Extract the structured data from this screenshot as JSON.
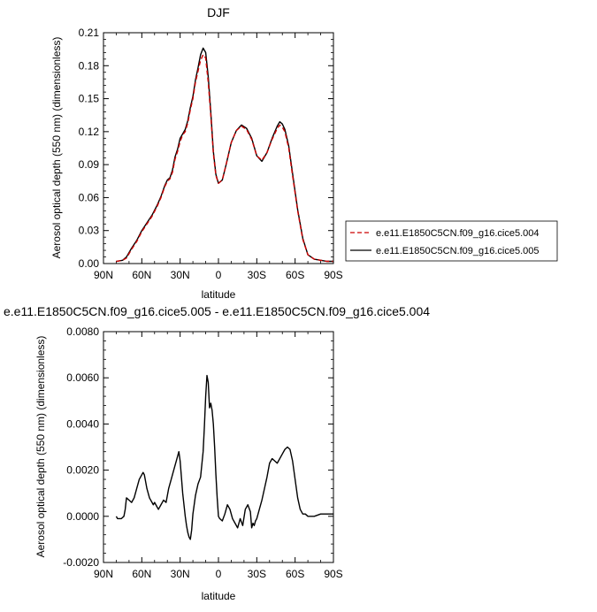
{
  "figure": {
    "top_title": "DJF",
    "bottom_title": "e.e11.E1850C5CN.f09_g16.cice5.005 - e.e11.E1850C5CN.f09_g16.cice5.004"
  },
  "chart_data": [
    {
      "type": "line",
      "title": "DJF",
      "xlabel": "latitude",
      "ylabel": "Aerosol optical depth (550 nm) (dimensionless)",
      "xlim": [
        90,
        -90
      ],
      "ylim": [
        0.0,
        0.21
      ],
      "x_ticks": [
        90,
        60,
        30,
        0,
        -30,
        -60,
        -90
      ],
      "x_tick_labels": [
        "90N",
        "60N",
        "30N",
        "0",
        "30S",
        "60S",
        "90S"
      ],
      "y_ticks": [
        0.0,
        0.03,
        0.06,
        0.09,
        0.12,
        0.15,
        0.18,
        0.21
      ],
      "y_tick_labels": [
        "0.00",
        "0.03",
        "0.06",
        "0.09",
        "0.12",
        "0.15",
        "0.18",
        "0.21"
      ],
      "legend_position": "right",
      "series": [
        {
          "name": "e.e11.E1850C5CN.f09_g16.cice5.004",
          "color": "#cc0000",
          "dash": "dashed",
          "x": [
            80,
            75,
            72,
            68,
            64,
            60,
            56,
            52,
            48,
            45,
            42,
            40,
            38,
            36,
            34,
            32,
            30,
            28,
            26,
            24,
            22,
            20,
            18,
            16,
            14,
            12,
            10,
            8,
            6,
            4,
            2,
            0,
            -3,
            -6,
            -10,
            -14,
            -18,
            -22,
            -26,
            -30,
            -34,
            -38,
            -42,
            -46,
            -48,
            -50,
            -52,
            -55,
            -58,
            -62,
            -66,
            -70,
            -75,
            -80,
            -85,
            -90
          ],
          "y": [
            0.002,
            0.003,
            0.005,
            0.013,
            0.02,
            0.029,
            0.036,
            0.043,
            0.052,
            0.06,
            0.07,
            0.075,
            0.077,
            0.083,
            0.095,
            0.102,
            0.111,
            0.117,
            0.12,
            0.128,
            0.14,
            0.15,
            0.165,
            0.175,
            0.185,
            0.19,
            0.187,
            0.165,
            0.135,
            0.1,
            0.08,
            0.073,
            0.076,
            0.09,
            0.11,
            0.121,
            0.125,
            0.122,
            0.113,
            0.098,
            0.094,
            0.101,
            0.113,
            0.123,
            0.126,
            0.124,
            0.12,
            0.105,
            0.08,
            0.048,
            0.022,
            0.008,
            0.004,
            0.003,
            0.002,
            0.002
          ]
        },
        {
          "name": "e.e11.E1850C5CN.f09_g16.cice5.005",
          "color": "#000000",
          "dash": "solid",
          "x": [
            80,
            75,
            72,
            68,
            64,
            60,
            56,
            52,
            48,
            45,
            42,
            40,
            38,
            36,
            34,
            32,
            30,
            28,
            26,
            24,
            22,
            20,
            18,
            16,
            14,
            12,
            10,
            8,
            6,
            4,
            2,
            0,
            -3,
            -6,
            -10,
            -14,
            -18,
            -22,
            -26,
            -30,
            -34,
            -38,
            -42,
            -46,
            -48,
            -50,
            -52,
            -55,
            -58,
            -62,
            -66,
            -70,
            -75,
            -80,
            -85,
            -90
          ],
          "y": [
            0.002,
            0.003,
            0.006,
            0.014,
            0.021,
            0.03,
            0.037,
            0.044,
            0.053,
            0.061,
            0.071,
            0.076,
            0.078,
            0.085,
            0.097,
            0.104,
            0.114,
            0.118,
            0.122,
            0.13,
            0.142,
            0.152,
            0.167,
            0.178,
            0.19,
            0.196,
            0.192,
            0.17,
            0.138,
            0.102,
            0.081,
            0.073,
            0.076,
            0.09,
            0.11,
            0.121,
            0.126,
            0.123,
            0.114,
            0.098,
            0.093,
            0.101,
            0.114,
            0.125,
            0.129,
            0.127,
            0.122,
            0.107,
            0.082,
            0.049,
            0.023,
            0.008,
            0.004,
            0.003,
            0.002,
            0.002
          ]
        }
      ]
    },
    {
      "type": "line",
      "title": "e.e11.E1850C5CN.f09_g16.cice5.005 - e.e11.E1850C5CN.f09_g16.cice5.004",
      "xlabel": "latitude",
      "ylabel": "Aerosol optical depth (550 nm) (dimensionless)",
      "xlim": [
        90,
        -90
      ],
      "ylim": [
        -0.002,
        0.008
      ],
      "x_ticks": [
        90,
        60,
        30,
        0,
        -30,
        -60,
        -90
      ],
      "x_tick_labels": [
        "90N",
        "60N",
        "30N",
        "0",
        "30S",
        "60S",
        "90S"
      ],
      "y_ticks": [
        -0.002,
        0.0,
        0.002,
        0.004,
        0.006,
        0.008
      ],
      "y_tick_labels": [
        "-0.0020",
        "0.0000",
        "0.0020",
        "0.0040",
        "0.0060",
        "0.0080"
      ],
      "series": [
        {
          "color": "#000000",
          "dash": "solid",
          "x": [
            80,
            79,
            78,
            76,
            74,
            73,
            72,
            70,
            68,
            66,
            64,
            62,
            60,
            59,
            58,
            56,
            54,
            52,
            51,
            50,
            49,
            48,
            47,
            45,
            43,
            41,
            39,
            37,
            35,
            33,
            31,
            30,
            28,
            26,
            25,
            24,
            23,
            22,
            21,
            20,
            19,
            18,
            16,
            14,
            12,
            11,
            10,
            9,
            8,
            7,
            6,
            5,
            4,
            3,
            2,
            1,
            0,
            -1,
            -3,
            -5,
            -7,
            -9,
            -11,
            -13,
            -15,
            -17,
            -19,
            -21,
            -23,
            -25,
            -26,
            -27,
            -28,
            -29,
            -30,
            -32,
            -34,
            -36,
            -38,
            -40,
            -42,
            -44,
            -46,
            -48,
            -50,
            -52,
            -54,
            -56,
            -58,
            -60,
            -62,
            -64,
            -66,
            -68,
            -70,
            -72,
            -75,
            -80,
            -85,
            -90
          ],
          "y": [
            0.0,
            -0.0001,
            -0.0001,
            -0.0001,
            0.0,
            0.0003,
            0.0008,
            0.0007,
            0.0006,
            0.0008,
            0.0012,
            0.0016,
            0.0018,
            0.0019,
            0.0018,
            0.0012,
            0.0008,
            0.0006,
            0.0005,
            0.0006,
            0.0005,
            0.0004,
            0.0003,
            0.0005,
            0.0007,
            0.0006,
            0.0012,
            0.0016,
            0.002,
            0.0024,
            0.0028,
            0.0024,
            0.001,
            0.0,
            -0.0004,
            -0.0007,
            -0.0009,
            -0.001,
            -0.0006,
            0.0001,
            0.0005,
            0.0009,
            0.0014,
            0.0017,
            0.0028,
            0.0039,
            0.0052,
            0.0061,
            0.0058,
            0.0047,
            0.0049,
            0.0046,
            0.004,
            0.003,
            0.0018,
            0.0008,
            0.0,
            -0.0001,
            -0.0002,
            0.0001,
            0.0005,
            0.0003,
            -0.0001,
            -0.0003,
            -0.0005,
            -0.0001,
            -0.0004,
            0.0003,
            0.0005,
            0.0002,
            -0.0005,
            -0.0003,
            -0.0004,
            -0.0002,
            -0.0001,
            0.0003,
            0.0007,
            0.0012,
            0.0017,
            0.0023,
            0.0025,
            0.0024,
            0.0023,
            0.0025,
            0.0027,
            0.0029,
            0.003,
            0.0029,
            0.0024,
            0.0016,
            0.0008,
            0.0003,
            0.0001,
            0.0001,
            0.0,
            0.0,
            0.0,
            0.0001,
            0.0001,
            0.0001
          ]
        }
      ]
    }
  ]
}
